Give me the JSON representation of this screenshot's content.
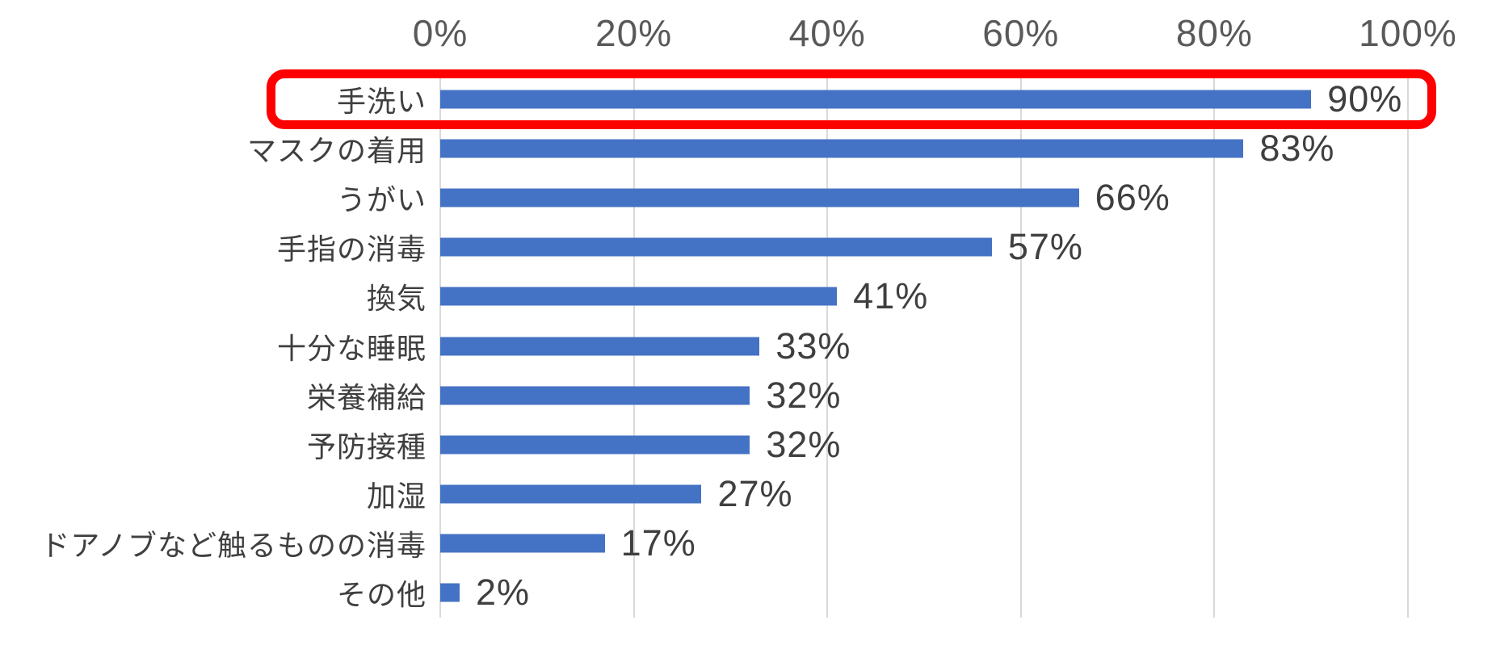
{
  "chart_data": {
    "type": "bar",
    "orientation": "horizontal",
    "title": "",
    "xlabel": "",
    "ylabel": "",
    "categories": [
      "手洗い",
      "マスクの着用",
      "うがい",
      "手指の消毒",
      "換気",
      "十分な睡眠",
      "栄養補給",
      "予防接種",
      "加湿",
      "ドアノブなど触るものの消毒",
      "その他"
    ],
    "values": [
      90,
      83,
      66,
      57,
      41,
      33,
      32,
      32,
      27,
      17,
      2
    ],
    "value_labels": [
      "90%",
      "83%",
      "66%",
      "57%",
      "41%",
      "33%",
      "32%",
      "32%",
      "27%",
      "17%",
      "2%"
    ],
    "x_axis": {
      "position": "top",
      "min": 0,
      "max": 100,
      "tick_labels": [
        "0%",
        "20%",
        "40%",
        "60%",
        "80%",
        "100%"
      ],
      "tick_values": [
        0,
        20,
        40,
        60,
        80,
        100
      ]
    },
    "grid": "vertical-only",
    "legend": "none",
    "colors": {
      "bar": "#4472C4",
      "gridline": "#D9D9D9",
      "axis_text": "#595959",
      "label_text": "#3F3F3F",
      "highlight_border": "#FE0000",
      "background": "#FFFFFF"
    },
    "annotations": [
      {
        "kind": "highlight-rectangle",
        "target_category": "手洗い",
        "description": "thick red rounded rectangle drawn around the top row (label, bar and 90% value)"
      }
    ]
  }
}
